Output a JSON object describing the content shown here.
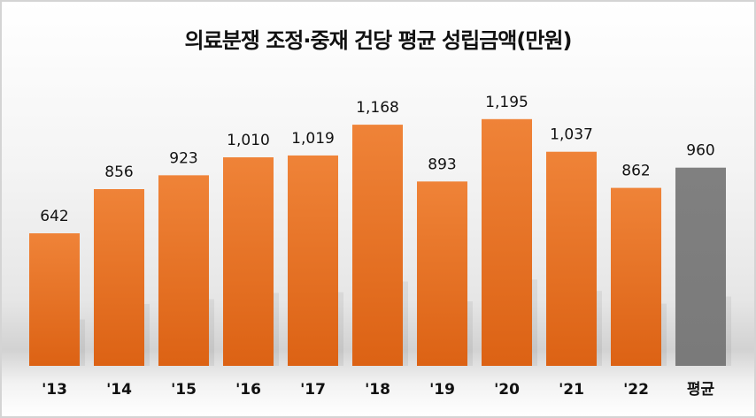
{
  "chart_data": {
    "type": "bar",
    "title": "의료분쟁 조정·중재 건당 평균 성립금액(만원)",
    "categories": [
      "'13",
      "'14",
      "'15",
      "'16",
      "'17",
      "'18",
      "'19",
      "'20",
      "'21",
      "'22",
      "평균"
    ],
    "values": [
      642,
      856,
      923,
      1010,
      1019,
      1168,
      893,
      1195,
      1037,
      862,
      960
    ],
    "value_labels": [
      "642",
      "856",
      "923",
      "1,010",
      "1,019",
      "1,168",
      "893",
      "1,195",
      "1,037",
      "862",
      "960"
    ],
    "xlabel": "",
    "ylabel": "",
    "ylim": [
      0,
      1300
    ],
    "grid": false,
    "legend": "none",
    "colors": {
      "bar": "#e8702a",
      "average": "#7f7f7f"
    }
  }
}
